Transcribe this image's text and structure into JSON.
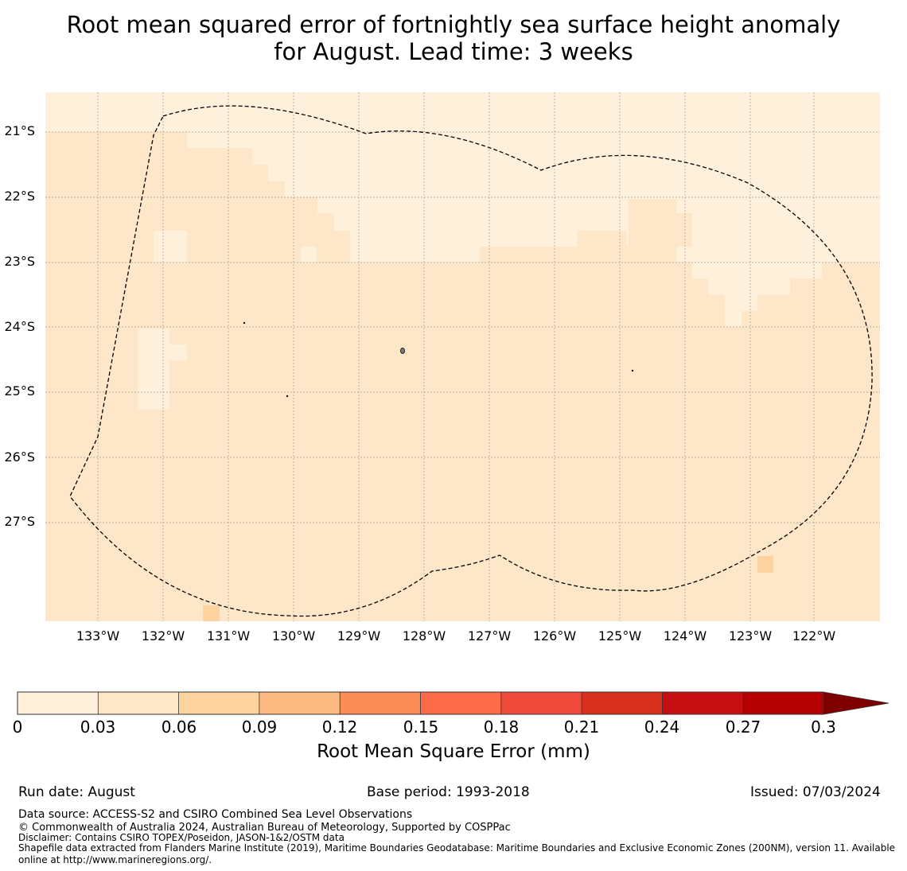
{
  "title": {
    "line1": "Root mean squared error of fortnightly sea surface height anomaly",
    "line2": "for August. Lead time: 3 weeks"
  },
  "map": {
    "lat_labels": [
      "21°S",
      "22°S",
      "23°S",
      "24°S",
      "25°S",
      "26°S",
      "27°S"
    ],
    "lon_labels": [
      "133°W",
      "132°W",
      "131°W",
      "130°W",
      "129°W",
      "128°W",
      "127°W",
      "126°W",
      "125°W",
      "124°W",
      "123°W",
      "122°W"
    ],
    "color_low": "#fff0dc",
    "color_mid": "#fee6c8",
    "color_high": "#fdd3a0",
    "boundary": "EEZ dashed outline"
  },
  "colorbar": {
    "ticks": [
      "0",
      "0.03",
      "0.06",
      "0.09",
      "0.12",
      "0.15",
      "0.18",
      "0.21",
      "0.24",
      "0.27",
      "0.3"
    ],
    "colors": [
      "#fff0dc",
      "#fee6c8",
      "#fdd49e",
      "#fdbb84",
      "#fc8d59",
      "#fd6b4a",
      "#ef4a3a",
      "#d7301f",
      "#c70e12",
      "#b30000",
      "#7f0000"
    ],
    "label": "Root Mean Square Error (mm)"
  },
  "footer": {
    "run_date": "Run date: August",
    "base_period": "Base period: 1993-2018",
    "issued": "Issued: 07/03/2024",
    "data_source": "Data source: ACCESS-S2 and CSIRO Combined Sea Level Observations",
    "copyright": "© Commonwealth of Australia 2024, Australian Bureau of Meteorology, Supported by COSPPac",
    "disclaimer": "Disclaimer: Contains CSIRO TOPEX/Poseidon, JASON-1&2/OSTM data",
    "shapefile": "Shapefile data extracted from Flanders Marine Institute (2019), Maritime Boundaries Geodatabase: Maritime Boundaries and Exclusive Economic Zones (200NM), version 11. Available online at http://www.marineregions.org/."
  }
}
